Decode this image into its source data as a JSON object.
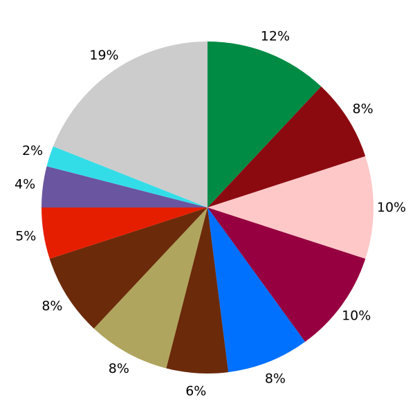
{
  "chart_data": {
    "type": "pie",
    "direction": "clockwise",
    "start": "top",
    "slices": [
      {
        "label": "12%",
        "value": 12,
        "color": "#008b45"
      },
      {
        "label": "8%",
        "value": 8,
        "color": "#8b0a10"
      },
      {
        "label": "10%",
        "value": 10,
        "color": "#ffc8c8"
      },
      {
        "label": "10%",
        "value": 10,
        "color": "#960040"
      },
      {
        "label": "8%",
        "value": 8,
        "color": "#0070ff"
      },
      {
        "label": "6%",
        "value": 6,
        "color": "#6b2a0a"
      },
      {
        "label": "8%",
        "value": 8,
        "color": "#b0a55e"
      },
      {
        "label": "8%",
        "value": 8,
        "color": "#6b2a0a"
      },
      {
        "label": "5%",
        "value": 5,
        "color": "#e61e00"
      },
      {
        "label": "4%",
        "value": 4,
        "color": "#6a55a0"
      },
      {
        "label": "2%",
        "value": 2,
        "color": "#33dde8"
      },
      {
        "label": "19%",
        "value": 19,
        "color": "#cccccc"
      }
    ]
  }
}
